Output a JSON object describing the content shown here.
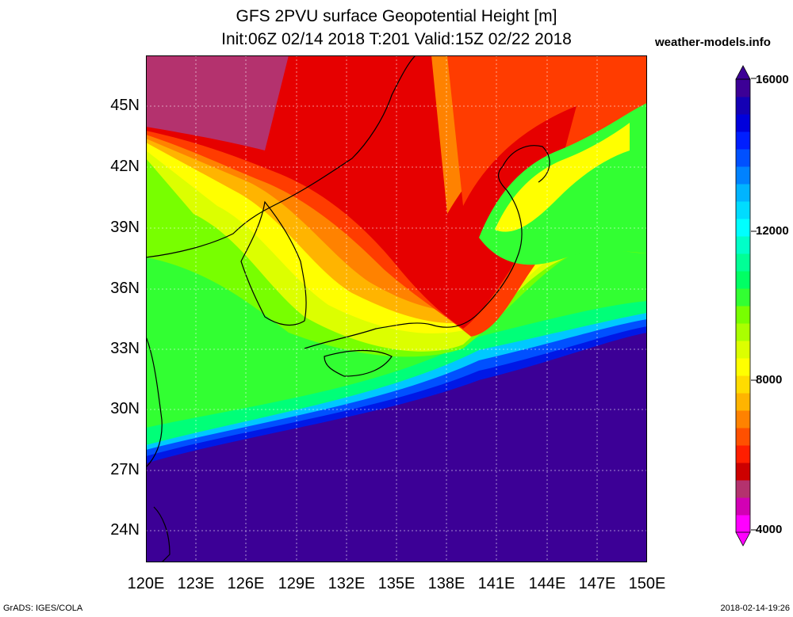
{
  "title_line1": "GFS 2PVU surface Geopotential Height [m]",
  "title_line2": "Init:06Z 02/14 2018 T:201 Valid:15Z 02/22 2018",
  "site": "weather-models.info",
  "lat_labels": [
    "45N",
    "42N",
    "39N",
    "36N",
    "33N",
    "30N",
    "27N",
    "24N"
  ],
  "lon_labels": [
    "120E",
    "123E",
    "126E",
    "129E",
    "132E",
    "135E",
    "138E",
    "141E",
    "144E",
    "147E",
    "150E"
  ],
  "colorbar": {
    "labels": [
      "16000",
      "12000",
      "8000",
      "4000"
    ],
    "colors": [
      "#ff00ff",
      "#d200b4",
      "#b4326e",
      "#cd0000",
      "#ff1e00",
      "#ff5000",
      "#ff8200",
      "#ffb400",
      "#ffdc00",
      "#ffff00",
      "#dcff00",
      "#aaff00",
      "#78ff00",
      "#32ff32",
      "#00ff64",
      "#00ff96",
      "#00ffc8",
      "#00ffff",
      "#00dcff",
      "#00b4ff",
      "#0082ff",
      "#0050ff",
      "#001eff",
      "#0000dc",
      "#1400b4",
      "#3c0096"
    ]
  },
  "footer_left": "GrADS: IGES/COLA",
  "footer_right": "2018-02-14-19:26"
}
